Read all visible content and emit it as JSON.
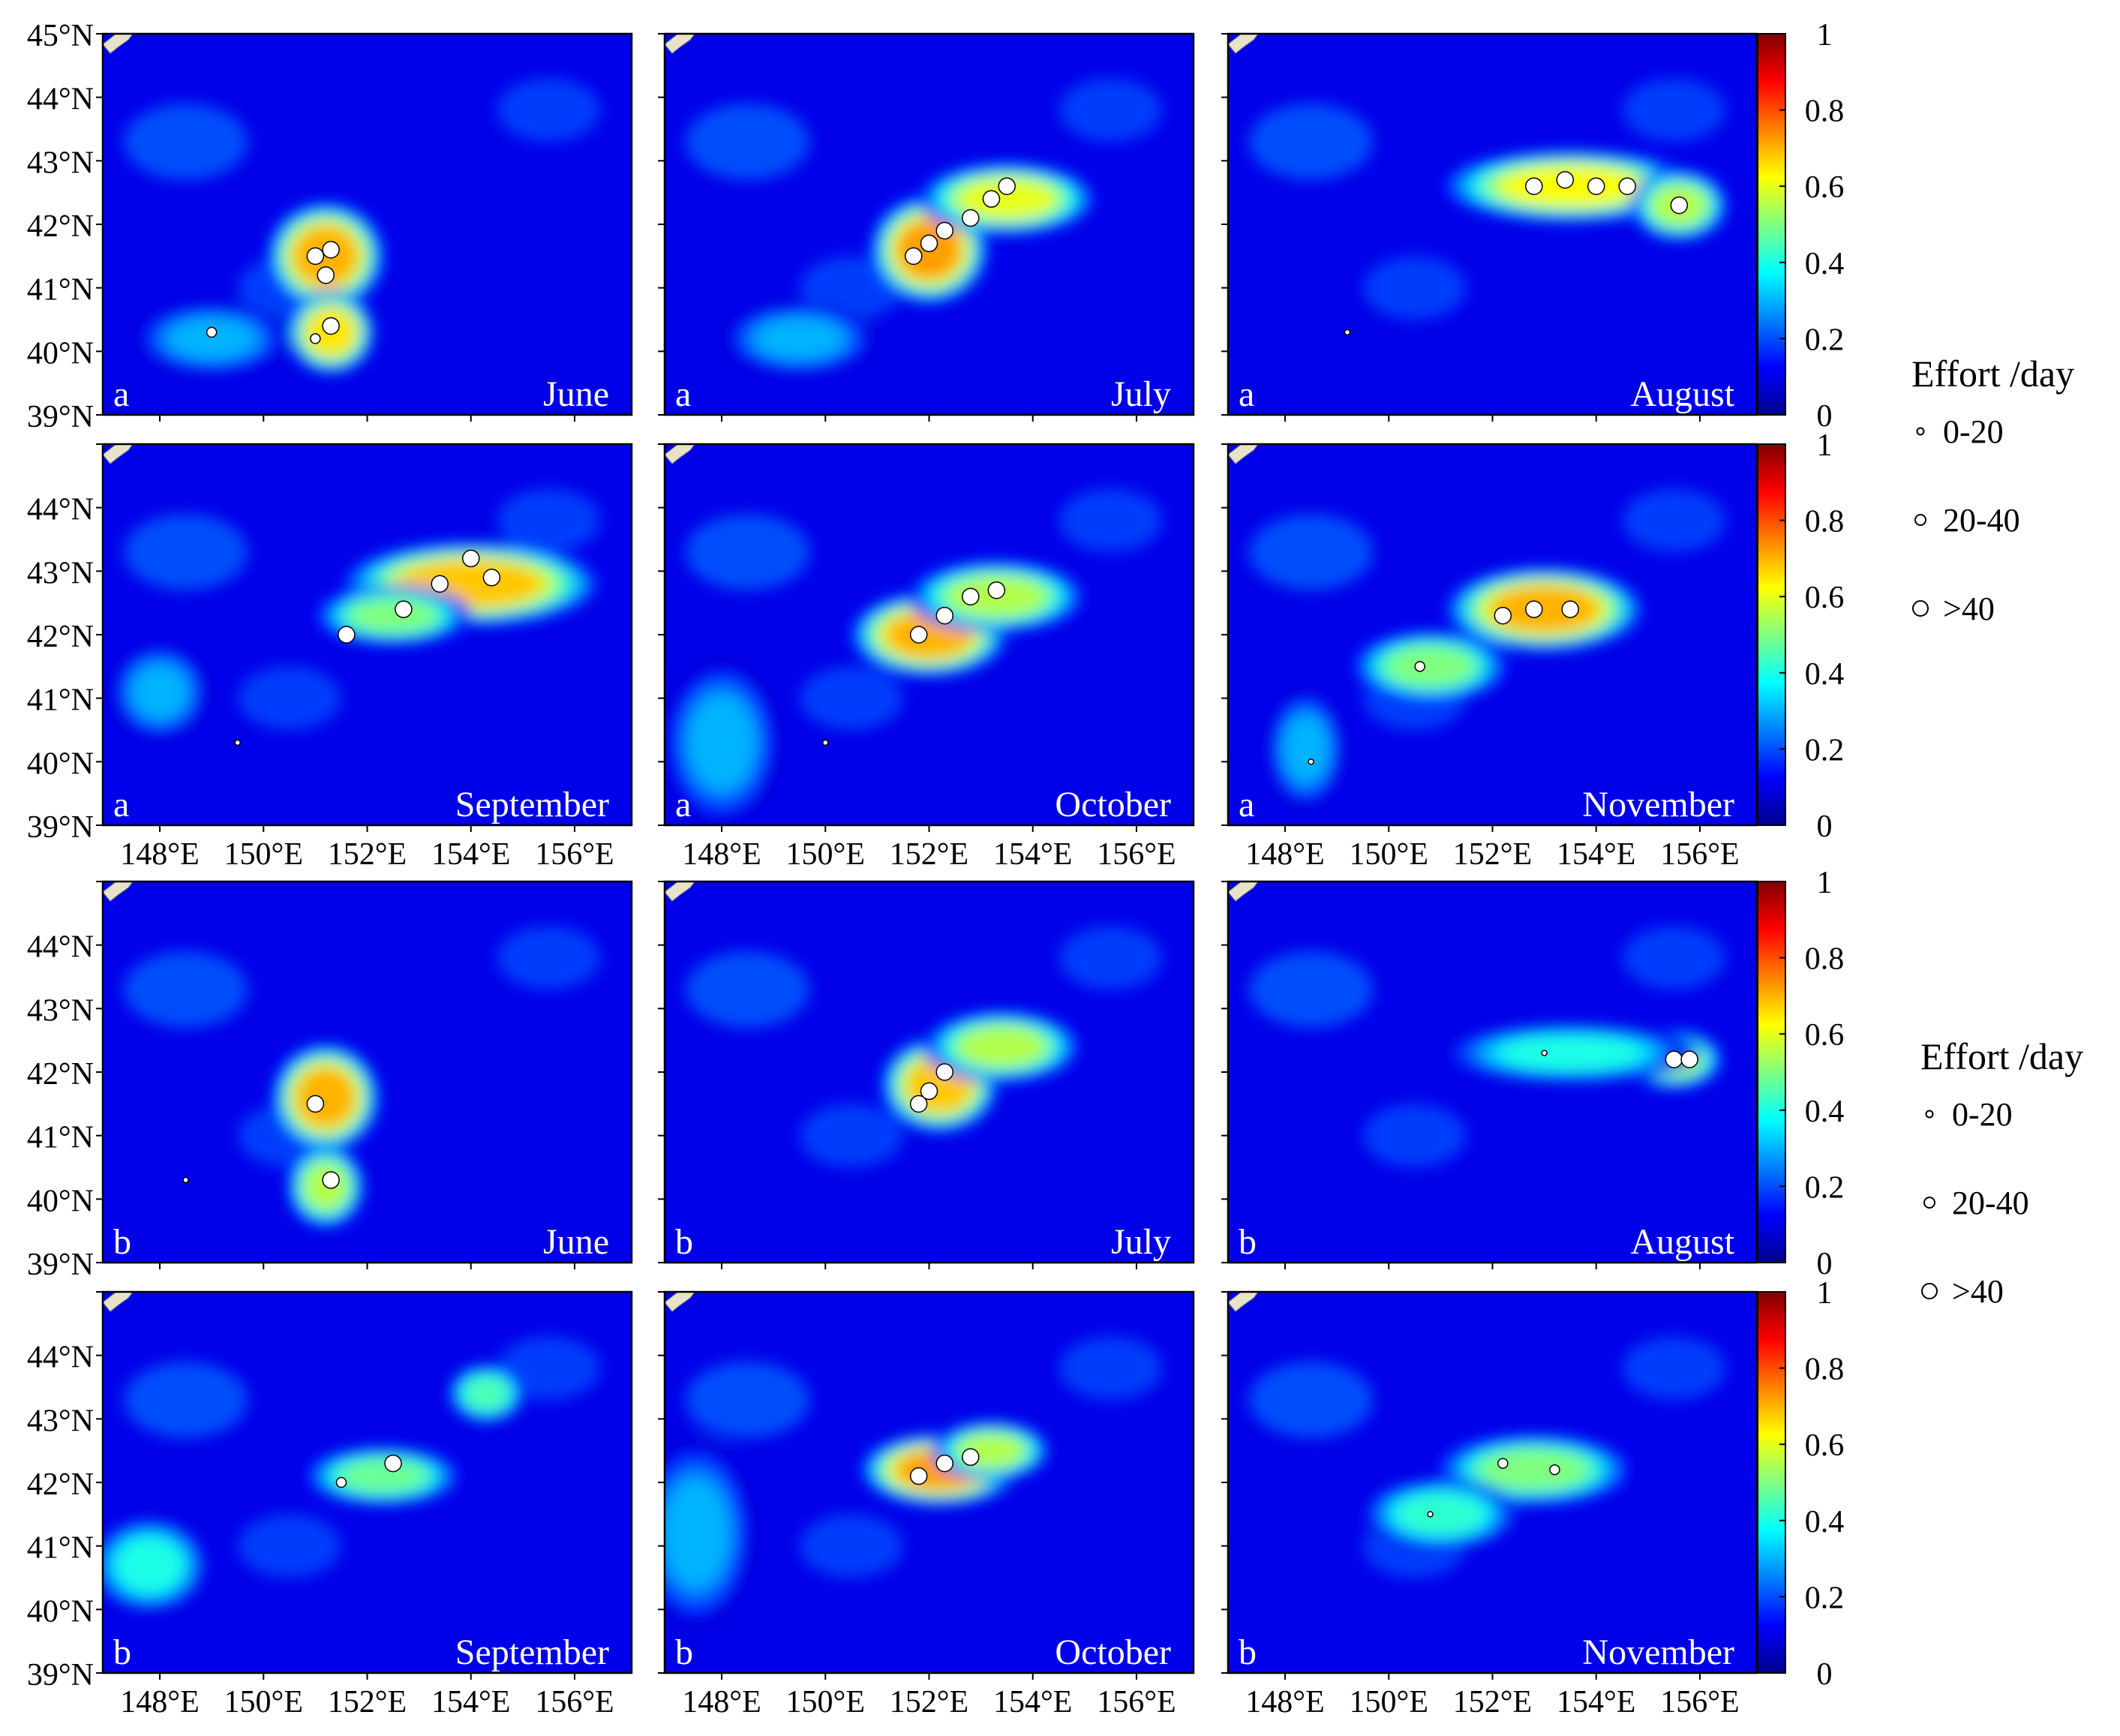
{
  "figure": {
    "y_ticks": [
      "39°N",
      "40°N",
      "41°N",
      "42°N",
      "43°N",
      "44°N",
      "45°N"
    ],
    "x_ticks": [
      "148°E",
      "150°E",
      "152°E",
      "154°E",
      "156°E"
    ],
    "colorbar_ticks": [
      "0",
      "0.2",
      "0.4",
      "0.6",
      "0.8",
      "1"
    ],
    "colormap": [
      "#00008f",
      "#0000ff",
      "#0080ff",
      "#00ffff",
      "#80ff80",
      "#ffff00",
      "#ff8000",
      "#ff0000",
      "#800000"
    ],
    "legends": [
      {
        "title": "Effort /day",
        "items": [
          "0-20",
          "20-40",
          ">40"
        ]
      },
      {
        "title": "Effort /day",
        "items": [
          "0-20",
          "20-40",
          ">40"
        ]
      }
    ]
  },
  "chart_data": [
    {
      "type": "heatmap",
      "panel_letter": "a",
      "month": "June",
      "xlim": [
        146.9,
        157.1
      ],
      "ylim": [
        39,
        45
      ],
      "zlim": [
        0,
        1
      ],
      "hotspots": [
        {
          "x": 151.2,
          "y": 41.5,
          "v": 0.7,
          "sx": 0.6,
          "sy": 0.45
        },
        {
          "x": 151.3,
          "y": 40.3,
          "v": 0.65,
          "sx": 0.45,
          "sy": 0.35
        },
        {
          "x": 149.0,
          "y": 40.2,
          "v": 0.3,
          "sx": 0.8,
          "sy": 0.3
        }
      ],
      "effort": [
        {
          "x": 151.0,
          "y": 41.5,
          "c": 3
        },
        {
          "x": 151.3,
          "y": 41.6,
          "c": 3
        },
        {
          "x": 151.2,
          "y": 41.2,
          "c": 3
        },
        {
          "x": 151.3,
          "y": 40.4,
          "c": 3
        },
        {
          "x": 151.0,
          "y": 40.2,
          "c": 2
        },
        {
          "x": 149.0,
          "y": 40.3,
          "c": 2
        }
      ]
    },
    {
      "type": "heatmap",
      "panel_letter": "a",
      "month": "July",
      "xlim": [
        146.9,
        157.1
      ],
      "ylim": [
        39,
        45
      ],
      "zlim": [
        0,
        1
      ],
      "hotspots": [
        {
          "x": 152.0,
          "y": 41.6,
          "v": 0.72,
          "sx": 0.6,
          "sy": 0.45
        },
        {
          "x": 153.5,
          "y": 42.4,
          "v": 0.6,
          "sx": 0.9,
          "sy": 0.3
        },
        {
          "x": 149.5,
          "y": 40.2,
          "v": 0.3,
          "sx": 0.8,
          "sy": 0.3
        }
      ],
      "effort": [
        {
          "x": 151.7,
          "y": 41.5,
          "c": 3
        },
        {
          "x": 152.0,
          "y": 41.7,
          "c": 3
        },
        {
          "x": 152.3,
          "y": 41.9,
          "c": 3
        },
        {
          "x": 152.8,
          "y": 42.1,
          "c": 3
        },
        {
          "x": 153.2,
          "y": 42.4,
          "c": 3
        },
        {
          "x": 153.5,
          "y": 42.6,
          "c": 3
        }
      ]
    },
    {
      "type": "heatmap",
      "panel_letter": "a",
      "month": "August",
      "xlim": [
        146.9,
        157.1
      ],
      "ylim": [
        39,
        45
      ],
      "zlim": [
        0,
        1
      ],
      "hotspots": [
        {
          "x": 153.5,
          "y": 42.6,
          "v": 0.62,
          "sx": 1.3,
          "sy": 0.3
        },
        {
          "x": 155.6,
          "y": 42.3,
          "v": 0.55,
          "sx": 0.5,
          "sy": 0.3
        }
      ],
      "effort": [
        {
          "x": 152.8,
          "y": 42.6,
          "c": 3
        },
        {
          "x": 153.4,
          "y": 42.7,
          "c": 3
        },
        {
          "x": 154.0,
          "y": 42.6,
          "c": 3
        },
        {
          "x": 154.6,
          "y": 42.6,
          "c": 3
        },
        {
          "x": 155.6,
          "y": 42.3,
          "c": 3
        },
        {
          "x": 149.2,
          "y": 40.3,
          "c": 1
        }
      ]
    },
    {
      "type": "heatmap",
      "panel_letter": "a",
      "month": "September",
      "xlim": [
        146.9,
        157.1
      ],
      "ylim": [
        39,
        45
      ],
      "zlim": [
        0,
        1
      ],
      "hotspots": [
        {
          "x": 154.0,
          "y": 42.8,
          "v": 0.68,
          "sx": 1.3,
          "sy": 0.35
        },
        {
          "x": 152.5,
          "y": 42.3,
          "v": 0.5,
          "sx": 0.8,
          "sy": 0.25
        },
        {
          "x": 148.0,
          "y": 41.1,
          "v": 0.3,
          "sx": 0.5,
          "sy": 0.4
        }
      ],
      "effort": [
        {
          "x": 153.4,
          "y": 42.8,
          "c": 3
        },
        {
          "x": 154.0,
          "y": 43.2,
          "c": 3
        },
        {
          "x": 154.4,
          "y": 42.9,
          "c": 3
        },
        {
          "x": 152.7,
          "y": 42.4,
          "c": 3
        },
        {
          "x": 151.6,
          "y": 42.0,
          "c": 3
        },
        {
          "x": 149.5,
          "y": 40.3,
          "c": 1
        }
      ]
    },
    {
      "type": "heatmap",
      "panel_letter": "a",
      "month": "October",
      "xlim": [
        146.9,
        157.1
      ],
      "ylim": [
        39,
        45
      ],
      "zlim": [
        0,
        1
      ],
      "hotspots": [
        {
          "x": 152.0,
          "y": 42.0,
          "v": 0.7,
          "sx": 0.8,
          "sy": 0.35
        },
        {
          "x": 153.3,
          "y": 42.6,
          "v": 0.55,
          "sx": 0.9,
          "sy": 0.3
        },
        {
          "x": 148.0,
          "y": 40.3,
          "v": 0.3,
          "sx": 0.6,
          "sy": 0.7
        }
      ],
      "effort": [
        {
          "x": 151.8,
          "y": 42.0,
          "c": 3
        },
        {
          "x": 152.3,
          "y": 42.3,
          "c": 3
        },
        {
          "x": 152.8,
          "y": 42.6,
          "c": 3
        },
        {
          "x": 153.3,
          "y": 42.7,
          "c": 3
        },
        {
          "x": 150.0,
          "y": 40.3,
          "c": 1
        }
      ]
    },
    {
      "type": "heatmap",
      "panel_letter": "a",
      "month": "November",
      "xlim": [
        146.9,
        157.1
      ],
      "ylim": [
        39,
        45
      ],
      "zlim": [
        0,
        1
      ],
      "hotspots": [
        {
          "x": 153.0,
          "y": 42.4,
          "v": 0.7,
          "sx": 1.0,
          "sy": 0.35
        },
        {
          "x": 150.8,
          "y": 41.5,
          "v": 0.5,
          "sx": 0.8,
          "sy": 0.3
        },
        {
          "x": 148.4,
          "y": 40.2,
          "v": 0.3,
          "sx": 0.4,
          "sy": 0.5
        }
      ],
      "effort": [
        {
          "x": 152.2,
          "y": 42.3,
          "c": 3
        },
        {
          "x": 152.8,
          "y": 42.4,
          "c": 3
        },
        {
          "x": 153.5,
          "y": 42.4,
          "c": 3
        },
        {
          "x": 150.6,
          "y": 41.5,
          "c": 2
        },
        {
          "x": 148.5,
          "y": 40.0,
          "c": 1
        }
      ]
    },
    {
      "type": "heatmap",
      "panel_letter": "b",
      "month": "June",
      "xlim": [
        146.9,
        157.1
      ],
      "ylim": [
        39,
        45
      ],
      "zlim": [
        0,
        1
      ],
      "hotspots": [
        {
          "x": 151.2,
          "y": 41.6,
          "v": 0.7,
          "sx": 0.55,
          "sy": 0.45
        },
        {
          "x": 151.2,
          "y": 40.2,
          "v": 0.55,
          "sx": 0.4,
          "sy": 0.35
        }
      ],
      "effort": [
        {
          "x": 151.0,
          "y": 41.5,
          "c": 3
        },
        {
          "x": 151.3,
          "y": 40.3,
          "c": 3
        },
        {
          "x": 148.5,
          "y": 40.3,
          "c": 1
        }
      ]
    },
    {
      "type": "heatmap",
      "panel_letter": "b",
      "month": "July",
      "xlim": [
        146.9,
        157.1
      ],
      "ylim": [
        39,
        45
      ],
      "zlim": [
        0,
        1
      ],
      "hotspots": [
        {
          "x": 152.2,
          "y": 41.8,
          "v": 0.68,
          "sx": 0.6,
          "sy": 0.4
        },
        {
          "x": 153.4,
          "y": 42.4,
          "v": 0.55,
          "sx": 0.8,
          "sy": 0.3
        }
      ],
      "effort": [
        {
          "x": 151.8,
          "y": 41.5,
          "c": 3
        },
        {
          "x": 152.0,
          "y": 41.7,
          "c": 3
        },
        {
          "x": 152.3,
          "y": 42.0,
          "c": 3
        }
      ]
    },
    {
      "type": "heatmap",
      "panel_letter": "b",
      "month": "August",
      "xlim": [
        146.9,
        157.1
      ],
      "ylim": [
        39,
        45
      ],
      "zlim": [
        0,
        1
      ],
      "hotspots": [
        {
          "x": 155.5,
          "y": 42.2,
          "v": 0.55,
          "sx": 0.5,
          "sy": 0.25
        },
        {
          "x": 153.5,
          "y": 42.3,
          "v": 0.4,
          "sx": 1.3,
          "sy": 0.25
        }
      ],
      "effort": [
        {
          "x": 155.5,
          "y": 42.2,
          "c": 3
        },
        {
          "x": 155.8,
          "y": 42.2,
          "c": 3
        },
        {
          "x": 153.0,
          "y": 42.3,
          "c": 1
        }
      ]
    },
    {
      "type": "heatmap",
      "panel_letter": "b",
      "month": "September",
      "xlim": [
        146.9,
        157.1
      ],
      "ylim": [
        39,
        45
      ],
      "zlim": [
        0,
        1
      ],
      "hotspots": [
        {
          "x": 152.3,
          "y": 42.1,
          "v": 0.48,
          "sx": 0.8,
          "sy": 0.25
        },
        {
          "x": 154.3,
          "y": 43.4,
          "v": 0.45,
          "sx": 0.4,
          "sy": 0.25
        },
        {
          "x": 147.8,
          "y": 40.7,
          "v": 0.4,
          "sx": 0.6,
          "sy": 0.4
        }
      ],
      "effort": [
        {
          "x": 152.5,
          "y": 42.3,
          "c": 3
        },
        {
          "x": 151.5,
          "y": 42.0,
          "c": 2
        }
      ]
    },
    {
      "type": "heatmap",
      "panel_letter": "b",
      "month": "October",
      "xlim": [
        146.9,
        157.1
      ],
      "ylim": [
        39,
        45
      ],
      "zlim": [
        0,
        1
      ],
      "hotspots": [
        {
          "x": 152.2,
          "y": 42.2,
          "v": 0.72,
          "sx": 0.8,
          "sy": 0.3
        },
        {
          "x": 153.2,
          "y": 42.5,
          "v": 0.55,
          "sx": 0.6,
          "sy": 0.25
        },
        {
          "x": 147.5,
          "y": 41.2,
          "v": 0.3,
          "sx": 0.6,
          "sy": 0.8
        }
      ],
      "effort": [
        {
          "x": 151.8,
          "y": 42.1,
          "c": 3
        },
        {
          "x": 152.3,
          "y": 42.3,
          "c": 3
        },
        {
          "x": 152.8,
          "y": 42.4,
          "c": 3
        }
      ]
    },
    {
      "type": "heatmap",
      "panel_letter": "b",
      "month": "November",
      "xlim": [
        146.9,
        157.1
      ],
      "ylim": [
        39,
        45
      ],
      "zlim": [
        0,
        1
      ],
      "hotspots": [
        {
          "x": 152.8,
          "y": 42.2,
          "v": 0.5,
          "sx": 1.0,
          "sy": 0.3
        },
        {
          "x": 151.0,
          "y": 41.5,
          "v": 0.42,
          "sx": 0.8,
          "sy": 0.3
        }
      ],
      "effort": [
        {
          "x": 152.2,
          "y": 42.3,
          "c": 2
        },
        {
          "x": 153.2,
          "y": 42.2,
          "c": 2
        },
        {
          "x": 150.8,
          "y": 41.5,
          "c": 1
        }
      ]
    }
  ]
}
